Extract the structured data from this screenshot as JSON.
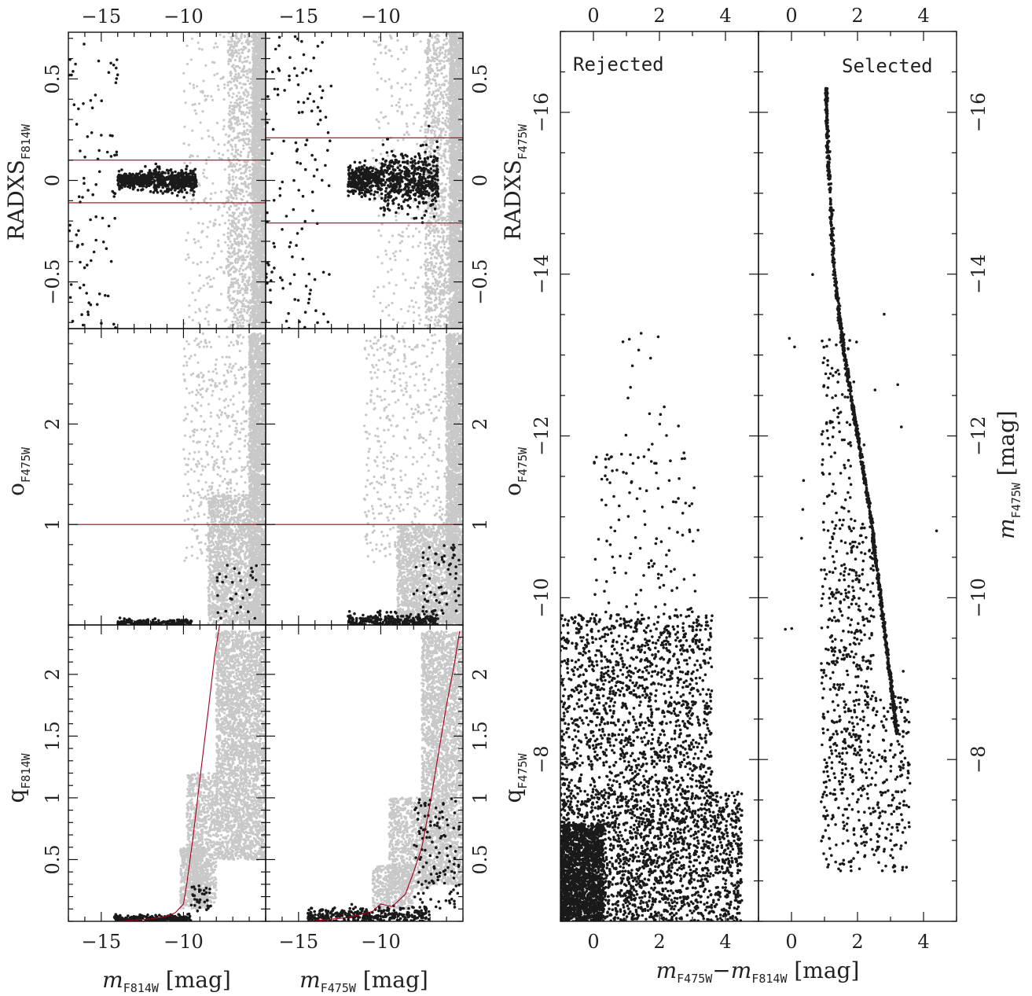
{
  "colors": {
    "background": "#ffffff",
    "frame": "#111111",
    "all_stars": "#c8c8c8",
    "selected_stars": "#1a1a1a",
    "cut_line": "#a3001a"
  },
  "labels": {
    "radxs_f814w": {
      "main": "RADXS",
      "sub": "F814W"
    },
    "o_f475w_left": {
      "main": "o",
      "sub": "F475W"
    },
    "q_f814w": {
      "main": "q",
      "sub": "F814W"
    },
    "radxs_f475w": {
      "main": "RADXS",
      "sub": "F475W"
    },
    "o_f475w_right": {
      "main": "o",
      "sub": "F475W"
    },
    "q_f475w": {
      "main": "q",
      "sub": "F475W"
    },
    "x_f814w": {
      "main": "m",
      "sub": "F814W",
      "unit": " [mag]"
    },
    "x_f475w": {
      "main": "m",
      "sub": "F475W",
      "unit": " [mag]"
    },
    "x_color": {
      "m1": "m",
      "s1": "F475W",
      "dash": "−",
      "m2": "m",
      "s2": "F814W",
      "unit": " [mag]"
    },
    "y_cmd": {
      "main": "m",
      "sub": "F475W",
      "unit": " [mag]"
    },
    "rejected": "Rejected",
    "selected": "Selected"
  },
  "chart_data": [
    {
      "id": "radxs-vs-f814w",
      "type": "scatter",
      "xlabel": "m F814W [mag]",
      "ylabel": "RADXS F814W",
      "xlim": [
        -17.0,
        -5.0
      ],
      "ylim": [
        -0.73,
        0.73
      ],
      "x_ticks": [
        -15,
        -10
      ],
      "y_ticks": [
        -0.5,
        0,
        0.5
      ],
      "cut_lines_y": [
        0.1,
        -0.11
      ],
      "series": [
        {
          "role": "all",
          "note_free": true,
          "clouds": [
            {
              "n": 2600,
              "x": [
                -5.8,
                -5.0
              ],
              "y": [
                -0.73,
                0.73
              ]
            },
            {
              "n": 900,
              "x": [
                -7.3,
                -5.8
              ],
              "y": [
                -0.73,
                0.73
              ]
            },
            {
              "n": 200,
              "x": [
                -10.0,
                -7.3
              ],
              "y": [
                -0.73,
                0.73
              ]
            }
          ]
        },
        {
          "role": "selected",
          "clouds": [
            {
              "n": 320,
              "x": [
                -14.0,
                -12.0
              ],
              "yc": 0.0,
              "ys": 0.018
            },
            {
              "n": 360,
              "x": [
                -12.0,
                -9.2
              ],
              "yc": 0.0,
              "ys": 0.028
            },
            {
              "n": 90,
              "x": [
                -17.0,
                -14.0
              ],
              "y": [
                -0.73,
                0.73
              ]
            }
          ]
        }
      ]
    },
    {
      "id": "radxs-vs-f475w",
      "type": "scatter",
      "xlabel": "m F475W [mag]",
      "ylabel": "RADXS F475W",
      "xlim": [
        -17.0,
        -5.0
      ],
      "ylim": [
        -0.73,
        0.73
      ],
      "x_ticks": [
        -15,
        -10
      ],
      "y_ticks": [
        -0.5,
        0,
        0.5
      ],
      "cut_lines_y": [
        0.21,
        -0.21
      ],
      "series": [
        {
          "role": "all",
          "clouds": [
            {
              "n": 2600,
              "x": [
                -5.8,
                -5.0
              ],
              "y": [
                -0.73,
                0.73
              ]
            },
            {
              "n": 900,
              "x": [
                -7.3,
                -5.8
              ],
              "y": [
                -0.73,
                0.73
              ]
            },
            {
              "n": 200,
              "x": [
                -10.5,
                -7.3
              ],
              "y": [
                -0.73,
                0.73
              ]
            }
          ]
        },
        {
          "role": "selected",
          "clouds": [
            {
              "n": 300,
              "x": [
                -12.0,
                -10.0
              ],
              "yc": 0.0,
              "ys": 0.035
            },
            {
              "n": 520,
              "x": [
                -10.0,
                -6.5
              ],
              "yc": 0.0,
              "ys": 0.07
            },
            {
              "n": 130,
              "x": [
                -17.0,
                -13.0
              ],
              "y": [
                -0.73,
                0.73
              ]
            }
          ]
        }
      ]
    },
    {
      "id": "o-vs-f814w",
      "type": "scatter",
      "xlabel": "m F814W [mag]",
      "ylabel": "o F475W",
      "xlim": [
        -17.0,
        -5.0
      ],
      "ylim": [
        0.0,
        2.95
      ],
      "x_ticks": [
        -15,
        -10
      ],
      "y_ticks": [
        1,
        2
      ],
      "cut_lines_y": [
        1.0
      ],
      "series": [
        {
          "role": "all",
          "clouds": [
            {
              "n": 2600,
              "x": [
                -6.0,
                -5.0
              ],
              "y": [
                0.0,
                2.9
              ]
            },
            {
              "n": 1400,
              "x": [
                -8.5,
                -6.0
              ],
              "y": [
                0.0,
                1.3
              ]
            },
            {
              "n": 450,
              "x": [
                -10.0,
                -6.0
              ],
              "y": [
                0.6,
                2.9
              ]
            }
          ]
        },
        {
          "role": "selected",
          "clouds": [
            {
              "n": 160,
              "x": [
                -14.0,
                -9.5
              ],
              "yc": 0.025,
              "ys": 0.015
            },
            {
              "n": 30,
              "x": [
                -8.0,
                -5.5
              ],
              "y": [
                0.05,
                0.6
              ]
            }
          ]
        }
      ]
    },
    {
      "id": "o-vs-f475w",
      "type": "scatter",
      "xlabel": "m F475W [mag]",
      "ylabel": "o F475W",
      "xlim": [
        -17.0,
        -5.0
      ],
      "ylim": [
        0.0,
        2.95
      ],
      "x_ticks": [
        -15,
        -10
      ],
      "y_ticks": [
        1,
        2
      ],
      "cut_lines_y": [
        1.0
      ],
      "series": [
        {
          "role": "all",
          "clouds": [
            {
              "n": 2600,
              "x": [
                -6.0,
                -5.0
              ],
              "y": [
                0.0,
                2.9
              ]
            },
            {
              "n": 1400,
              "x": [
                -9.0,
                -6.0
              ],
              "y": [
                0.0,
                1.0
              ]
            },
            {
              "n": 450,
              "x": [
                -11.0,
                -6.0
              ],
              "y": [
                0.6,
                2.9
              ]
            }
          ]
        },
        {
          "role": "selected",
          "clouds": [
            {
              "n": 320,
              "x": [
                -12.0,
                -6.5
              ],
              "yc": 0.04,
              "ys": 0.04
            },
            {
              "n": 60,
              "x": [
                -8.0,
                -5.2
              ],
              "y": [
                0.1,
                0.8
              ]
            }
          ]
        }
      ]
    },
    {
      "id": "q-vs-f814w",
      "type": "scatter",
      "xlabel": "m F814W [mag]",
      "ylabel": "q F814W",
      "xlim": [
        -17.0,
        -5.0
      ],
      "ylim": [
        0.0,
        2.4
      ],
      "x_ticks": [
        -15,
        -10
      ],
      "y_ticks": [
        0.5,
        1,
        1.5,
        2
      ],
      "cut_curve": {
        "x": [
          -14.2,
          -13.0,
          -12.0,
          -11.0,
          -10.5,
          -10.0,
          -9.8,
          -9.4,
          -9.0,
          -8.5,
          -8.1,
          -7.8
        ],
        "y": [
          0.0,
          0.01,
          0.02,
          0.04,
          0.07,
          0.14,
          0.3,
          0.7,
          1.15,
          1.7,
          2.15,
          2.4
        ]
      },
      "series": [
        {
          "role": "all",
          "clouds": [
            {
              "n": 3200,
              "x": [
                -8.0,
                -5.0
              ],
              "y": [
                0.5,
                2.35
              ]
            },
            {
              "n": 900,
              "x": [
                -9.8,
                -8.0
              ],
              "y": [
                0.15,
                1.2
              ]
            },
            {
              "n": 500,
              "x": [
                -10.2,
                -8.5
              ],
              "y": [
                0.1,
                0.6
              ]
            }
          ]
        },
        {
          "role": "selected",
          "clouds": [
            {
              "n": 260,
              "x": [
                -14.2,
                -9.5
              ],
              "yc": 0.02,
              "ys": 0.015
            },
            {
              "n": 35,
              "x": [
                -9.6,
                -8.3
              ],
              "y": [
                0.08,
                0.3
              ]
            }
          ]
        }
      ]
    },
    {
      "id": "q-vs-f475w",
      "type": "scatter",
      "xlabel": "m F475W [mag]",
      "ylabel": "q F475W",
      "xlim": [
        -17.0,
        -5.0
      ],
      "ylim": [
        0.0,
        2.4
      ],
      "x_ticks": [
        -15,
        -10
      ],
      "y_ticks": [
        0.5,
        1,
        1.5,
        2
      ],
      "cut_curve": {
        "x": [
          -14.5,
          -12.0,
          -10.5,
          -10.0,
          -9.3,
          -8.5,
          -8.0,
          -7.5,
          -7.0,
          -6.5,
          -6.0,
          -5.5,
          -5.2
        ],
        "y": [
          0.0,
          0.03,
          0.08,
          0.14,
          0.12,
          0.22,
          0.4,
          0.6,
          0.95,
          1.35,
          1.75,
          2.1,
          2.35
        ]
      },
      "series": [
        {
          "role": "all",
          "clouds": [
            {
              "n": 2800,
              "x": [
                -7.5,
                -5.0
              ],
              "y": [
                0.3,
                2.35
              ]
            },
            {
              "n": 900,
              "x": [
                -9.5,
                -7.0
              ],
              "y": [
                0.25,
                1.0
              ]
            },
            {
              "n": 400,
              "x": [
                -10.5,
                -8.0
              ],
              "y": [
                0.1,
                0.45
              ]
            }
          ]
        },
        {
          "role": "selected",
          "clouds": [
            {
              "n": 380,
              "x": [
                -14.5,
                -7.0
              ],
              "yc": 0.04,
              "ys": 0.035
            },
            {
              "n": 120,
              "x": [
                -8.0,
                -5.2
              ],
              "y": [
                0.1,
                1.0
              ]
            }
          ]
        }
      ]
    },
    {
      "id": "cmd-rejected",
      "type": "scatter",
      "xlabel": "m F475W − m F814W [mag]",
      "ylabel": "m F475W [mag]",
      "xlim": [
        -1.0,
        5.0
      ],
      "ylim": [
        -6.0,
        -17.0
      ],
      "x_ticks": [
        0,
        2,
        4
      ],
      "y_ticks": [
        -16,
        -14,
        -12,
        -10,
        -8
      ],
      "series": [
        {
          "role": "rejected",
          "clouds": [
            {
              "n": 2000,
              "x": [
                -1.0,
                4.5
              ],
              "y": [
                -6.0,
                -7.6
              ]
            },
            {
              "n": 1400,
              "x": [
                -1.0,
                3.6
              ],
              "y": [
                -7.6,
                -9.8
              ]
            },
            {
              "n": 1600,
              "x": [
                -1.0,
                0.3
              ],
              "y": [
                -6.0,
                -7.2
              ]
            },
            {
              "n": 120,
              "x": [
                0.0,
                3.2
              ],
              "y": [
                -9.8,
                -11.8
              ]
            },
            {
              "n": 18,
              "x": [
                0.8,
                2.6
              ],
              "y": [
                -11.8,
                -13.3
              ]
            }
          ]
        }
      ]
    },
    {
      "id": "cmd-selected",
      "type": "scatter",
      "xlabel": "m F475W − m F814W [mag]",
      "ylabel": "m F475W [mag]",
      "xlim": [
        -1.0,
        5.0
      ],
      "ylim": [
        -6.0,
        -17.0
      ],
      "x_ticks": [
        0,
        2,
        4
      ],
      "y_ticks": [
        -16,
        -14,
        -12,
        -10,
        -8
      ],
      "series": [
        {
          "role": "selected",
          "sequence": {
            "x": [
              1.05,
              1.1,
              1.3,
              1.6,
              2.0,
              2.4,
              2.7,
              3.0,
              3.2
            ],
            "y": [
              -16.3,
              -15.5,
              -14.0,
              -13.0,
              -12.0,
              -11.0,
              -10.0,
              -9.0,
              -8.3
            ],
            "n": 1100,
            "xs": 0.02
          },
          "clouds": [
            {
              "n": 450,
              "x": [
                0.9,
                3.6
              ],
              "y": [
                -8.8,
                -6.6
              ]
            },
            {
              "n": 280,
              "x": [
                0.9,
                2.5
              ],
              "y": [
                -11.0,
                -8.8
              ]
            },
            {
              "n": 90,
              "x": [
                0.9,
                1.8
              ],
              "y": [
                -13.2,
                -11.0
              ]
            },
            {
              "n": 22,
              "x": [
                -0.2,
                4.5
              ],
              "y": [
                -6.4,
                -14.0
              ]
            }
          ]
        }
      ]
    }
  ]
}
